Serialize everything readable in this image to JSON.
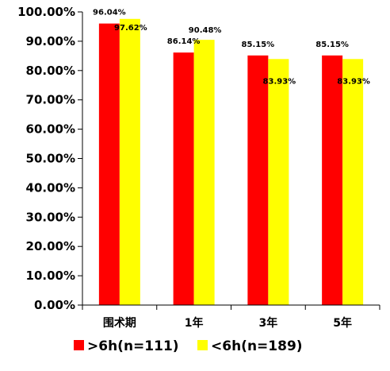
{
  "chart_data": {
    "type": "bar",
    "categories": [
      "围术期",
      "1年",
      "3年",
      "5年"
    ],
    "series": [
      {
        "name": ">6h(n=111)",
        "color": "#ff0000",
        "values": [
          96.04,
          86.14,
          85.15,
          85.15
        ],
        "labels": [
          "96.04%",
          "86.14%",
          "85.15%",
          "85.15%"
        ]
      },
      {
        "name": "<6h(n=189)",
        "color": "#ffff00",
        "values": [
          97.62,
          90.48,
          83.93,
          83.93
        ],
        "labels": [
          "97.62%",
          "90.48%",
          "83.93%",
          "83.93%"
        ]
      }
    ],
    "ylim": [
      0,
      100
    ],
    "yticks": [
      0,
      10,
      20,
      30,
      40,
      50,
      60,
      70,
      80,
      90,
      100
    ],
    "ytick_labels": [
      "0.00%",
      "10.00%",
      "20.00%",
      "30.00%",
      "40.00%",
      "50.00%",
      "60.00%",
      "70.00%",
      "80.00%",
      "90.00%",
      "100.00%"
    ],
    "title": "",
    "xlabel": "",
    "ylabel": "",
    "grid": false,
    "legend_position": "bottom"
  }
}
